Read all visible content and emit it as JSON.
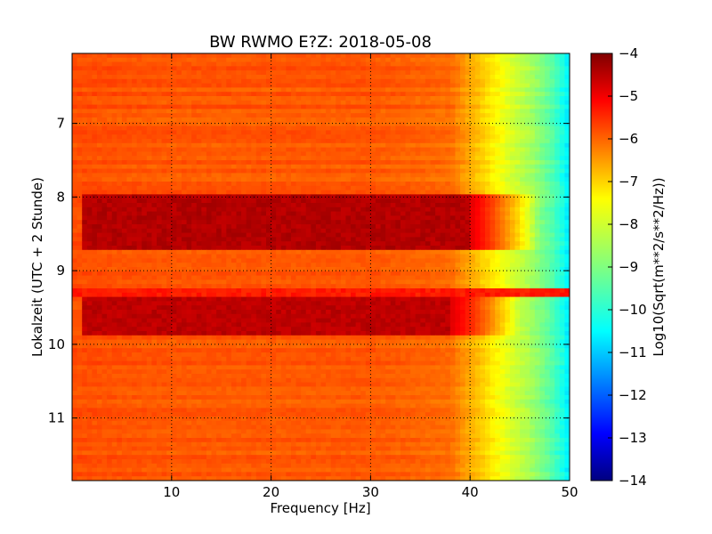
{
  "chart_data": {
    "type": "heatmap",
    "title": "BW RWMO E?Z: 2018-05-08",
    "xlabel": "Frequency [Hz]",
    "ylabel": "Lokalzeit (UTC + 2 Stunde)",
    "colorbar_label": "Log10(Sqrt(m**2/s**2/Hz))",
    "colormap": "jet",
    "xlim": [
      0,
      50
    ],
    "ylim": [
      6.05,
      11.85
    ],
    "y_inverted": true,
    "x_ticks": [
      10,
      20,
      30,
      40,
      50
    ],
    "x_tick_labels": [
      "10",
      "20",
      "30",
      "40",
      "50"
    ],
    "y_ticks": [
      7,
      8,
      9,
      10,
      11
    ],
    "y_tick_labels": [
      "7",
      "8",
      "9",
      "10",
      "11"
    ],
    "clim": [
      -14,
      -4
    ],
    "colorbar_ticks": [
      -4,
      -5,
      -6,
      -7,
      -8,
      -9,
      -10,
      -11,
      -12,
      -13,
      -14
    ],
    "colorbar_tick_labels": [
      "−4",
      "−5",
      "−6",
      "−7",
      "−8",
      "−9",
      "−10",
      "−11",
      "−12",
      "−13",
      "−14"
    ],
    "grid": true,
    "baseline_level": -6.1,
    "frequency_profile": [
      {
        "freq": 0,
        "value": -6.0
      },
      {
        "freq": 10,
        "value": -6.1
      },
      {
        "freq": 30,
        "value": -6.1
      },
      {
        "freq": 38,
        "value": -6.3
      },
      {
        "freq": 40,
        "value": -6.9
      },
      {
        "freq": 42,
        "value": -7.5
      },
      {
        "freq": 44,
        "value": -8.1
      },
      {
        "freq": 46,
        "value": -8.6
      },
      {
        "freq": 48,
        "value": -9.3
      },
      {
        "freq": 49.3,
        "value": -10.0
      },
      {
        "freq": 50,
        "value": -10.5
      }
    ],
    "high_noise_bands": [
      {
        "time_start": 7.94,
        "time_end": 8.72,
        "freq_start": 1,
        "freq_end": 40,
        "level": -4.5
      },
      {
        "time_start": 9.23,
        "time_end": 9.38,
        "freq_start": 0,
        "freq_end": 50,
        "level": -5.5
      },
      {
        "time_start": 9.38,
        "time_end": 9.85,
        "freq_start": 1,
        "freq_end": 38,
        "level": -4.6
      }
    ]
  }
}
